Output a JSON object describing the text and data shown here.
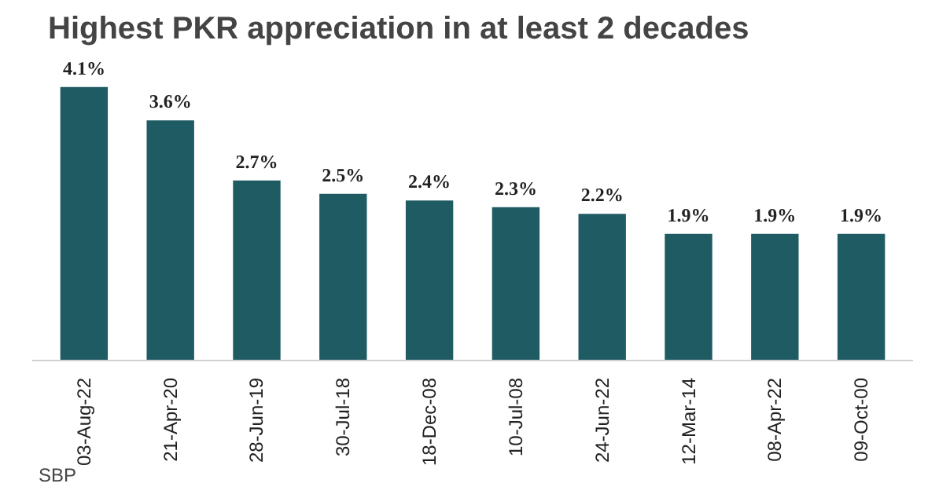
{
  "chart_data": {
    "type": "bar",
    "title": "Highest PKR appreciation in at least 2 decades",
    "categories": [
      "03-Aug-22",
      "21-Apr-20",
      "28-Jun-19",
      "30-Jul-18",
      "18-Dec-08",
      "10-Jul-08",
      "24-Jun-22",
      "12-Mar-14",
      "08-Apr-22",
      "09-Oct-00"
    ],
    "values": [
      4.1,
      3.6,
      2.7,
      2.5,
      2.4,
      2.3,
      2.2,
      1.9,
      1.9,
      1.9
    ],
    "value_labels": [
      "4.1%",
      "3.6%",
      "2.7%",
      "2.5%",
      "2.4%",
      "2.3%",
      "2.2%",
      "1.9%",
      "1.9%",
      "1.9%"
    ],
    "color": "#1f5b63",
    "annotations": [
      "SBP"
    ]
  }
}
